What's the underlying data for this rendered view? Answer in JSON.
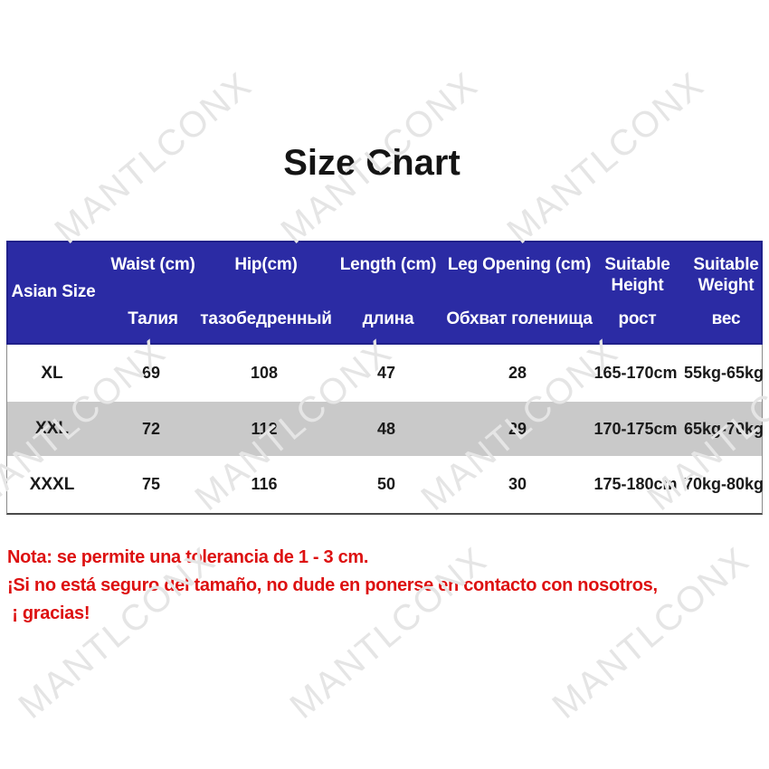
{
  "title": "Size Chart",
  "watermark": {
    "text": "MANTLCONX"
  },
  "colors": {
    "header_bg": "#2b2ba4",
    "header_border": "#20208a",
    "header_text": "#ffffff",
    "alt_row_bg": "#c9c9c9",
    "body_text": "#1a1a1a",
    "note_text": "#dd1111",
    "watermark": "#e5e5e5"
  },
  "table": {
    "corner_label": "Asian Size",
    "columns": [
      {
        "en": "Waist (cm)",
        "ru": "Талия"
      },
      {
        "en": "Hip(cm)",
        "ru": "тазобедренный"
      },
      {
        "en": "Length (cm)",
        "ru": "длина"
      },
      {
        "en": "Leg Opening (cm)",
        "ru": "Обхват голенища"
      },
      {
        "en": "Suitable Height",
        "ru": "рост"
      },
      {
        "en": "Suitable Weight",
        "ru": "вес"
      }
    ],
    "rows": [
      {
        "size": "XL",
        "highlight": false,
        "values": [
          "69",
          "108",
          "47",
          "28",
          "165-170cm",
          "55kg-65kg"
        ]
      },
      {
        "size": "XXL",
        "highlight": true,
        "values": [
          "72",
          "112",
          "48",
          "29",
          "170-175cm",
          "65kg-70kg"
        ]
      },
      {
        "size": "XXXL",
        "highlight": false,
        "values": [
          "75",
          "116",
          "50",
          "30",
          "175-180cm",
          "70kg-80kg"
        ]
      }
    ]
  },
  "note": {
    "lines": [
      "Nota: se permite una tolerancia de 1 - 3 cm.",
      "¡Si no está seguro del tamaño, no dude en ponerse en contacto con nosotros,",
      " ¡ gracias!"
    ]
  },
  "chart_data": {
    "type": "table",
    "title": "Size Chart",
    "columns": [
      "Asian Size",
      "Waist (cm) / Талия",
      "Hip(cm) / тазобедренный",
      "Length (cm) / длина",
      "Leg Opening (cm) / Обхват голенища",
      "Suitable Height / рост",
      "Suitable Weight / вес"
    ],
    "rows": [
      [
        "XL",
        69,
        108,
        47,
        28,
        "165-170cm",
        "55kg-65kg"
      ],
      [
        "XXL",
        72,
        112,
        48,
        29,
        "170-175cm",
        "65kg-70kg"
      ],
      [
        "XXXL",
        75,
        116,
        50,
        30,
        "175-180cm",
        "70kg-80kg"
      ]
    ],
    "notes": "tolerance 1 - 3 cm"
  }
}
